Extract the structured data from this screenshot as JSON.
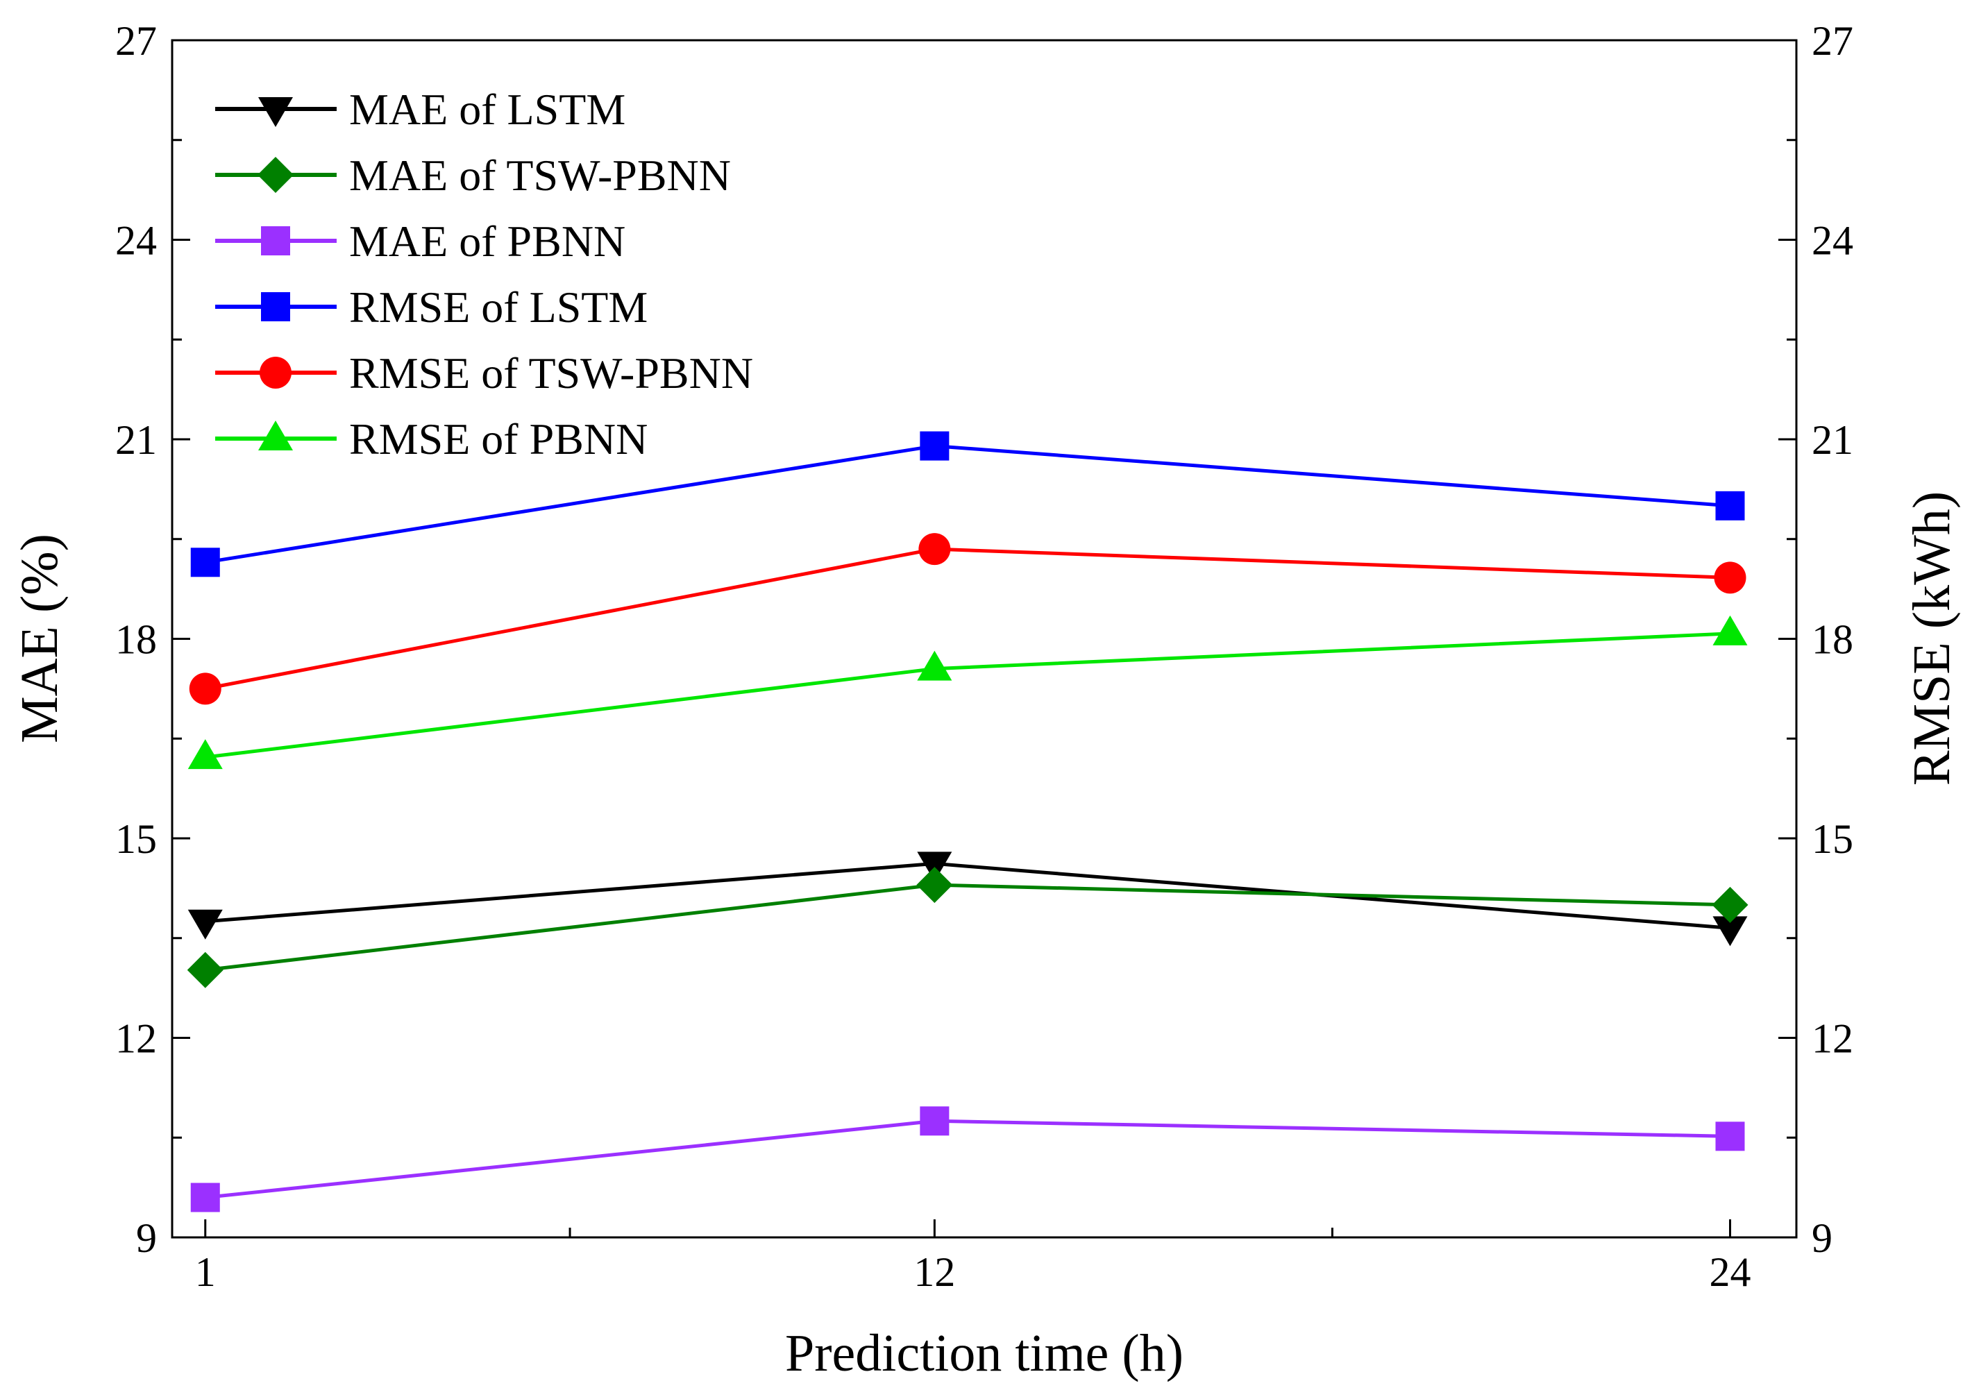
{
  "chart_data": {
    "type": "line",
    "x": [
      1,
      12,
      24
    ],
    "xlabel": "Prediction time (h)",
    "ylabel_left": "MAE (%)",
    "ylabel_right": "RMSE (kWh)",
    "xlim": [
      0.5,
      25
    ],
    "ylim": [
      9,
      27
    ],
    "ylim_right": [
      9,
      27
    ],
    "x_ticks": [
      1,
      12,
      24
    ],
    "x_minor_ticks": [
      6.5,
      18
    ],
    "y_ticks": [
      9,
      12,
      15,
      18,
      21,
      24,
      27
    ],
    "legend_position": "top-left",
    "series": [
      {
        "name": "MAE of LSTM",
        "axis": "left",
        "marker": "triangle-down",
        "color": "#000000",
        "values": [
          13.75,
          14.62,
          13.65
        ]
      },
      {
        "name": "MAE of TSW-PBNN",
        "axis": "left",
        "marker": "diamond",
        "color": "#008000",
        "values": [
          13.02,
          14.3,
          14.0
        ]
      },
      {
        "name": "MAE of PBNN",
        "axis": "left",
        "marker": "square",
        "color": "#9B30FF",
        "values": [
          9.6,
          10.75,
          10.52
        ]
      },
      {
        "name": "RMSE of LSTM",
        "axis": "right",
        "marker": "square",
        "color": "#0000FF",
        "values": [
          19.15,
          20.9,
          20.0
        ]
      },
      {
        "name": "RMSE of TSW-PBNN",
        "axis": "right",
        "marker": "circle",
        "color": "#FF0000",
        "values": [
          17.25,
          19.35,
          18.92
        ]
      },
      {
        "name": "RMSE of PBNN",
        "axis": "right",
        "marker": "triangle-up",
        "color": "#00E600",
        "values": [
          16.22,
          17.55,
          18.08
        ]
      }
    ]
  }
}
